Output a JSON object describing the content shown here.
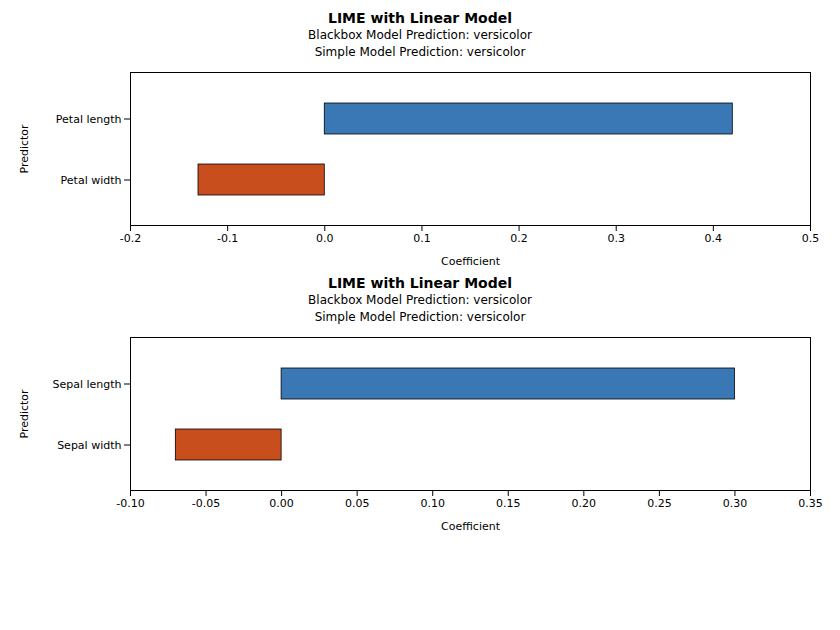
{
  "chart_data": [
    {
      "type": "bar",
      "orientation": "horizontal",
      "title": "LIME with Linear Model",
      "subtitle": [
        "Blackbox Model Prediction: versicolor",
        "Simple Model Prediction: versicolor"
      ],
      "xlabel": "Coefficient",
      "ylabel": "Predictor",
      "categories": [
        "Petal length",
        "Petal width"
      ],
      "values": [
        0.42,
        -0.13
      ],
      "colors": [
        "#3a78b5",
        "#c94e1e"
      ],
      "xlim": [
        -0.2,
        0.5
      ],
      "xticks": [
        -0.2,
        -0.1,
        {
          "value": 0,
          "label": "0.0"
        },
        0.1,
        0.2,
        0.3,
        0.4,
        0.5
      ]
    },
    {
      "type": "bar",
      "orientation": "horizontal",
      "title": "LIME with Linear Model",
      "subtitle": [
        "Blackbox Model Prediction: versicolor",
        "Simple Model Prediction: versicolor"
      ],
      "xlabel": "Coefficient",
      "ylabel": "Predictor",
      "categories": [
        "Sepal length",
        "Sepal width"
      ],
      "values": [
        0.3,
        -0.07
      ],
      "colors": [
        "#3a78b5",
        "#c94e1e"
      ],
      "xlim": [
        -0.1,
        0.35
      ],
      "xticks": [
        {
          "value": -0.1,
          "label": "-0.10"
        },
        {
          "value": -0.05,
          "label": "-0.05"
        },
        {
          "value": 0,
          "label": "0.00"
        },
        {
          "value": 0.05,
          "label": "0.05"
        },
        {
          "value": 0.1,
          "label": "0.10"
        },
        {
          "value": 0.15,
          "label": "0.15"
        },
        {
          "value": 0.2,
          "label": "0.20"
        },
        {
          "value": 0.25,
          "label": "0.25"
        },
        {
          "value": 0.3,
          "label": "0.30"
        },
        {
          "value": 0.35,
          "label": "0.35"
        }
      ]
    }
  ]
}
